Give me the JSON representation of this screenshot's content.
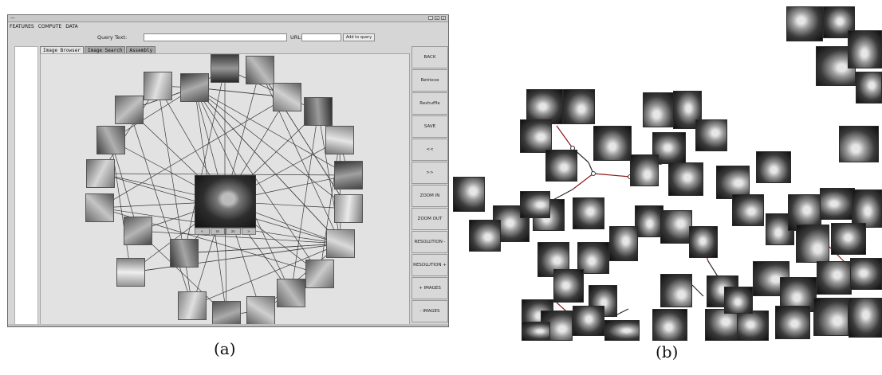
{
  "app": {
    "title_left": "—",
    "window_buttons": [
      "-",
      "▫",
      "x"
    ],
    "menu": [
      "FEATURES",
      "COMPUTE",
      "DATA"
    ],
    "query": {
      "label": "Query Text:",
      "value": "",
      "url_label": "URL:",
      "url_value": "",
      "add_button": "Add to query"
    },
    "tabs": [
      {
        "label": "Image Browser",
        "active": true
      },
      {
        "label": "Image Search",
        "active": false
      },
      {
        "label": "Assembly",
        "active": false
      }
    ],
    "center_controls": [
      "<",
      "zo",
      "zo",
      ">"
    ],
    "sidebar_buttons": [
      "BACK",
      "Retrieve",
      "Reshuffle",
      "SAVE",
      "<<",
      ">>",
      "ZOOM IN",
      "ZOOM OUT",
      "RESOLUTION -",
      "RESOLUTION +",
      "+ IMAGES",
      "- IMAGES"
    ]
  },
  "colors": {
    "window_bg": "#d6d6d6",
    "canvas_bg": "#e2e2e2",
    "edge": "#3a3a3a",
    "xray_edge_red": "#8b1a1a"
  },
  "captions": {
    "a": "(a)",
    "b": "(b)"
  }
}
